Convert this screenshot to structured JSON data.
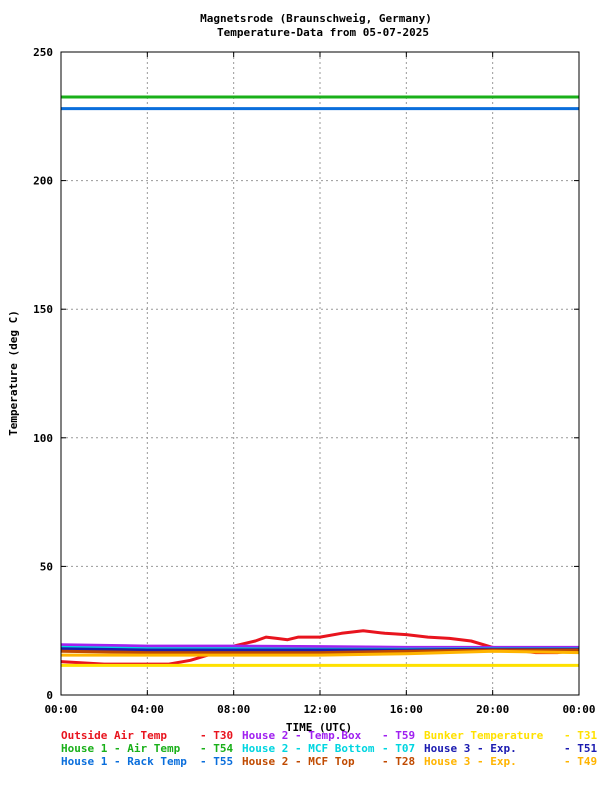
{
  "chart_data": {
    "type": "line",
    "title": "Magnetsrode (Braunschweig, Germany)",
    "subtitle": "Temperature-Data from 05-07-2025",
    "xlabel": "TIME (UTC)",
    "ylabel": "Temperature (deg C)",
    "xlim": [
      0,
      24
    ],
    "ylim": [
      0,
      250
    ],
    "x_ticks": [
      "00:00",
      "04:00",
      "08:00",
      "12:00",
      "16:00",
      "20:00",
      "00:00"
    ],
    "y_ticks": [
      "0",
      "50",
      "100",
      "150",
      "200",
      "250"
    ],
    "grid": true,
    "legend_position": "bottom",
    "series": [
      {
        "name": "Outside Air Temp",
        "code": "T30",
        "color": "#e8141e",
        "x": [
          0,
          1,
          2,
          3,
          4,
          5,
          6,
          7,
          8,
          9,
          9.5,
          10,
          10.5,
          11,
          12,
          13,
          14,
          15,
          16,
          17,
          18,
          19,
          20,
          21,
          22,
          23,
          24
        ],
        "y": [
          13,
          12.5,
          12,
          12,
          12,
          12,
          13.5,
          16,
          19,
          21,
          22.5,
          22,
          21.5,
          22.5,
          22.5,
          24,
          25,
          24,
          23.5,
          22.5,
          22,
          21,
          18.5,
          17.5,
          16.5,
          16.5,
          17.5
        ]
      },
      {
        "name": "House 2 - Temp.Box",
        "code": "T59",
        "color": "#a020f0",
        "x": [
          0,
          4,
          8,
          12,
          16,
          20,
          24
        ],
        "y": [
          19.5,
          19,
          19,
          18.8,
          18.5,
          18.5,
          18.5
        ]
      },
      {
        "name": "Bunker Temperature",
        "code": "T31",
        "color": "#ffe100",
        "x": [
          0,
          24
        ],
        "y": [
          11.5,
          11.5
        ]
      },
      {
        "name": "House 1 - Air  Temp",
        "code": "T54",
        "color": "#1ab01a",
        "x": [
          0,
          24
        ],
        "y": [
          232.5,
          232.5
        ]
      },
      {
        "name": "House 2 - MCF Bottom",
        "code": "T07",
        "color": "#00d5e0",
        "x": [
          0,
          4,
          8,
          12,
          16,
          20,
          24
        ],
        "y": [
          18.5,
          18,
          18,
          17.8,
          17.8,
          18,
          18
        ]
      },
      {
        "name": "House 3 - Exp.",
        "code": "T51",
        "color": "#1a1ab0",
        "x": [
          0,
          4,
          8,
          12,
          16,
          20,
          24
        ],
        "y": [
          18,
          17.5,
          17.5,
          17.5,
          17.5,
          17.8,
          17.8
        ]
      },
      {
        "name": "House 1 - Rack Temp",
        "code": "T55",
        "color": "#0a6edc",
        "x": [
          0,
          24
        ],
        "y": [
          228,
          228
        ]
      },
      {
        "name": "House 2 - MCF Top",
        "code": "T28",
        "color": "#c04a00",
        "x": [
          0,
          4,
          8,
          12,
          16,
          20,
          24
        ],
        "y": [
          17,
          16.5,
          16.5,
          16.5,
          17,
          17.5,
          17.5
        ]
      },
      {
        "name": "House 3 - Exp.",
        "code": "T49",
        "color": "#ffb400",
        "x": [
          0,
          4,
          8,
          12,
          16,
          20,
          24
        ],
        "y": [
          15.5,
          15.5,
          15.5,
          15.5,
          16,
          17,
          16.5
        ]
      }
    ]
  }
}
